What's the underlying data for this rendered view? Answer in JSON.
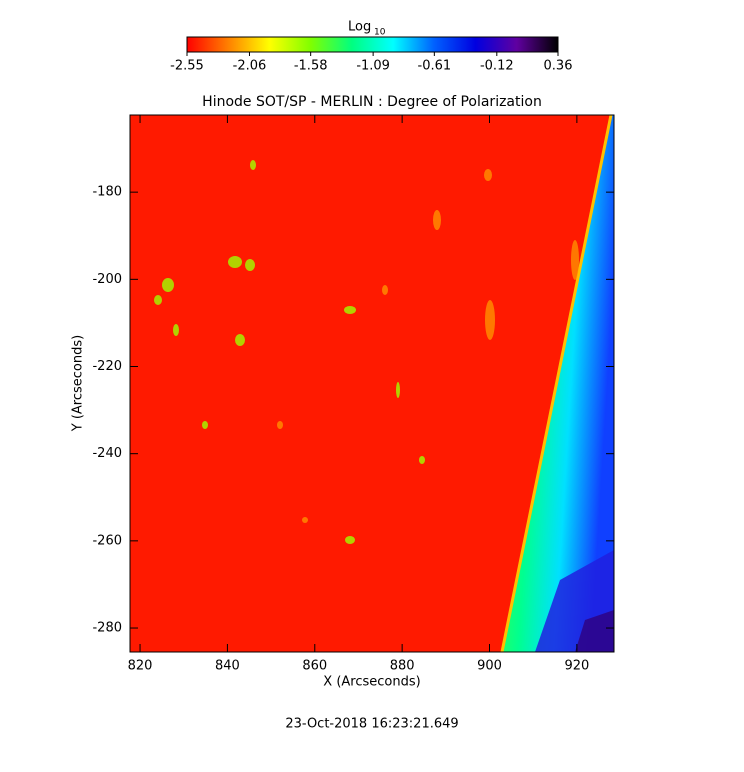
{
  "chart_data": {
    "type": "image",
    "title": "Hinode SOT/SP - MERLIN : Degree of Polarization",
    "xlabel": "X (Arcseconds)",
    "ylabel": "Y (Arcseconds)",
    "xlim": [
      817.7,
      928.5
    ],
    "xticks": [
      820,
      840,
      860,
      880,
      900,
      920
    ],
    "ylim": [
      -285.5,
      -162.3
    ],
    "yticks": [
      -280,
      -260,
      -240,
      -220,
      -200,
      -180
    ],
    "colorbar": {
      "label": "Log",
      "label_subscript": "10",
      "lim": [
        -2.55,
        0.36
      ],
      "ticks": [
        -2.55,
        -2.06,
        -1.58,
        -1.09,
        -0.61,
        -0.12,
        0.36
      ],
      "colormap": [
        "#ff0000",
        "#ff8000",
        "#ffff00",
        "#80ff00",
        "#00ff80",
        "#00ffff",
        "#0060ff",
        "#0000e0",
        "#6000a0",
        "#000000"
      ]
    },
    "footer": "23-Oct-2018 16:23:21.649"
  }
}
